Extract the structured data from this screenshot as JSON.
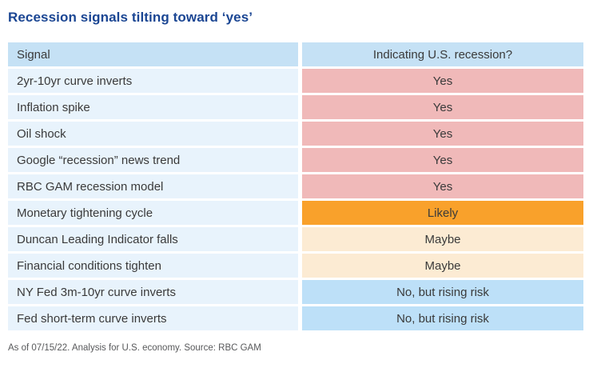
{
  "title": "Recession signals tilting toward ‘yes’",
  "footnote": "As of 07/15/22. Analysis for U.S. economy. Source: RBC GAM",
  "colors": {
    "title": "#1b4693",
    "text": "#3a3a3a",
    "footer": "#58595b",
    "header_bg": "#c5e1f5",
    "signal_bg": "#e8f3fc",
    "yes_bg": "#f0b9b9",
    "likely_bg": "#f9a12b",
    "maybe_bg": "#fcebd3",
    "no_bg": "#bde0f8"
  },
  "chart_data": {
    "type": "table",
    "title": "Recession signals tilting toward ‘yes’",
    "columns": [
      "Signal",
      "Indicating U.S. recession?"
    ],
    "rows": [
      {
        "signal": "2yr-10yr curve inverts",
        "answer": "Yes",
        "category": "yes"
      },
      {
        "signal": "Inflation spike",
        "answer": "Yes",
        "category": "yes"
      },
      {
        "signal": "Oil shock",
        "answer": "Yes",
        "category": "yes"
      },
      {
        "signal": "Google “recession” news trend",
        "answer": "Yes",
        "category": "yes"
      },
      {
        "signal": "RBC GAM recession model",
        "answer": "Yes",
        "category": "yes"
      },
      {
        "signal": "Monetary tightening cycle",
        "answer": "Likely",
        "category": "likely"
      },
      {
        "signal": "Duncan Leading Indicator falls",
        "answer": "Maybe",
        "category": "maybe"
      },
      {
        "signal": "Financial conditions tighten",
        "answer": "Maybe",
        "category": "maybe"
      },
      {
        "signal": "NY Fed 3m-10yr curve inverts",
        "answer": "No, but rising risk",
        "category": "no"
      },
      {
        "signal": "Fed short-term curve inverts",
        "answer": "No, but rising risk",
        "category": "no"
      }
    ],
    "legend_categories": [
      "Yes",
      "Likely",
      "Maybe",
      "No, but rising risk"
    ]
  }
}
